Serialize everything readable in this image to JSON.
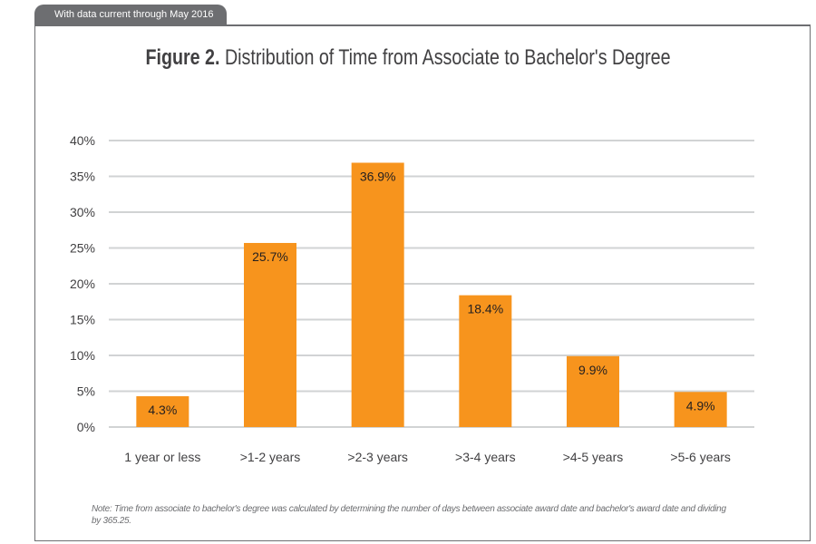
{
  "header_tab": "With data current through May 2016",
  "note": "Note: Time from associate to bachelor's degree was calculated by determining the number of days between associate award date and bachelor's award date and dividing by 365.25.",
  "colors": {
    "bar": "#f7941d",
    "grid": "#d1d3d4",
    "frame": "#6d6e71"
  },
  "chart_data": {
    "type": "bar",
    "title_bold": "Figure 2.",
    "title": "Distribution of Time from Associate to Bachelor's Degree",
    "categories": [
      "1 year or less",
      ">1-2 years",
      ">2-3 years",
      ">3-4 years",
      ">4-5 years",
      ">5-6 years"
    ],
    "values": [
      4.3,
      25.7,
      36.9,
      18.4,
      9.9,
      4.9
    ],
    "data_labels": [
      "4.3%",
      "25.7%",
      "36.9%",
      "18.4%",
      "9.9%",
      "4.9%"
    ],
    "yticks": [
      "0%",
      "5%",
      "10%",
      "15%",
      "20%",
      "25%",
      "30%",
      "35%",
      "40%"
    ],
    "ylim": [
      0,
      40
    ],
    "grid": true,
    "xlabel": "",
    "ylabel": ""
  }
}
